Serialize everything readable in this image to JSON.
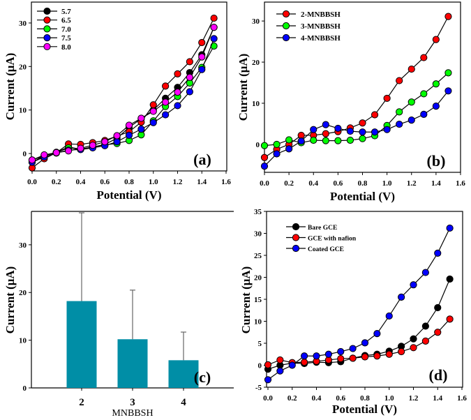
{
  "chart_data": [
    {
      "type": "line",
      "panel_label": "(a)",
      "xlabel": "Potential (V)",
      "ylabel": "Current (μA)",
      "xlim": [
        0,
        1.6
      ],
      "ylim": [
        -4,
        34.8
      ],
      "xticks": [
        "0.0",
        "0.2",
        "0.4",
        "0.6",
        "0.8",
        "1.0",
        "1.2",
        "1.4",
        "1.6"
      ],
      "yticks": [
        0,
        10,
        20,
        30
      ],
      "legend_position": "top-left",
      "x": [
        0,
        0.1,
        0.2,
        0.3,
        0.4,
        0.5,
        0.6,
        0.7,
        0.8,
        0.9,
        1.0,
        1.1,
        1.2,
        1.3,
        1.4,
        1.5
      ],
      "series": [
        {
          "name": "5.7",
          "color": "#000000",
          "values": [
            -1.5,
            -0.5,
            0.3,
            1.5,
            1.0,
            1.5,
            2.1,
            3.5,
            6.0,
            8.0,
            10.0,
            12.7,
            15.2,
            18.6,
            22.7,
            29.0
          ]
        },
        {
          "name": "6.5",
          "color": "#ff0000",
          "values": [
            -3.3,
            -1.2,
            0.2,
            2.2,
            2.1,
            2.5,
            3.0,
            4.0,
            5.0,
            7.2,
            11.2,
            15.5,
            18.3,
            21.1,
            25.5,
            31.1
          ]
        },
        {
          "name": "7.0",
          "color": "#00ff00",
          "values": [
            -2.0,
            -0.5,
            0.2,
            1.3,
            1.0,
            1.5,
            2.0,
            2.3,
            3.0,
            4.3,
            7.5,
            10.8,
            13.1,
            16.2,
            19.8,
            24.7
          ]
        },
        {
          "name": "7.5",
          "color": "#0000ff",
          "values": [
            -2.0,
            -0.8,
            0.1,
            0.8,
            0.9,
            1.3,
            1.8,
            2.7,
            4.2,
            5.6,
            7.1,
            8.9,
            11.0,
            14.2,
            19.3,
            26.4
          ]
        },
        {
          "name": "8.0",
          "color": "#ff00ff",
          "values": [
            -1.5,
            -0.3,
            0.2,
            0.6,
            1.2,
            1.9,
            2.7,
            4.1,
            6.5,
            8.1,
            9.7,
            11.8,
            14.1,
            17.5,
            22.2,
            29.0
          ]
        }
      ]
    },
    {
      "type": "line",
      "panel_label": "(b)",
      "xlabel": "Potential (V)",
      "ylabel": "Current (μA)",
      "xlim": [
        0,
        1.6
      ],
      "ylim": [
        -6.8,
        34.6
      ],
      "xticks": [
        "0.0",
        "0.2",
        "0.4",
        "0.6",
        "0.8",
        "1.0",
        "1.2",
        "1.4",
        "1.6"
      ],
      "yticks": [
        0,
        10,
        20,
        30
      ],
      "legend_position": "top-left",
      "x": [
        0,
        0.1,
        0.2,
        0.3,
        0.4,
        0.5,
        0.6,
        0.7,
        0.8,
        0.9,
        1.0,
        1.1,
        1.2,
        1.3,
        1.4,
        1.5
      ],
      "series": [
        {
          "name": "2-MNBBSH",
          "color": "#ff0000",
          "values": [
            -3.2,
            -1.2,
            0.0,
            2.2,
            2.2,
            2.6,
            3.1,
            4.0,
            5.2,
            7.2,
            11.2,
            15.5,
            18.3,
            21.1,
            25.5,
            31.1
          ]
        },
        {
          "name": "3-MNBBSH",
          "color": "#00ff00",
          "values": [
            -0.3,
            0.0,
            1.1,
            0.4,
            1.0,
            0.9,
            0.9,
            1.0,
            1.4,
            2.1,
            4.6,
            7.9,
            10.3,
            12.3,
            14.7,
            17.4
          ]
        },
        {
          "name": "4-MNBBSH",
          "color": "#0000ff",
          "values": [
            -5.3,
            -2.3,
            -1.1,
            0.8,
            3.6,
            4.8,
            3.9,
            3.2,
            3.0,
            3.0,
            3.6,
            4.9,
            5.9,
            7.3,
            9.3,
            13.0
          ]
        }
      ]
    },
    {
      "type": "bar",
      "panel_label": "(c)",
      "xlabel": "MNBBSH",
      "ylabel": "Current (μA)",
      "ylim": [
        0,
        37
      ],
      "yticks": [
        0,
        10,
        20,
        30
      ],
      "categories": [
        "2",
        "3",
        "4"
      ],
      "values": [
        18.2,
        10.2,
        5.8
      ],
      "error_upper": [
        36.7,
        20.5,
        11.7
      ],
      "color": "#008ea6"
    },
    {
      "type": "line",
      "panel_label": "(d)",
      "xlabel": "Potential (V)",
      "ylabel": "Current (μA)",
      "xlim": [
        0,
        1.6
      ],
      "ylim": [
        -5,
        35
      ],
      "xticks": [
        "0.0",
        "0.2",
        "0.4",
        "0.6",
        "0.8",
        "1.0",
        "1.2",
        "1.4",
        "1.6"
      ],
      "yticks": [
        -5,
        0,
        5,
        10,
        15,
        20,
        25,
        30,
        35
      ],
      "legend_position": "top-left",
      "x": [
        0,
        0.1,
        0.2,
        0.3,
        0.4,
        0.5,
        0.6,
        0.7,
        0.8,
        0.9,
        1.0,
        1.1,
        1.2,
        1.3,
        1.4,
        1.5
      ],
      "series": [
        {
          "name": "Bare GCE",
          "color": "#000000",
          "values": [
            -0.9,
            0.0,
            0.5,
            0.4,
            0.7,
            0.6,
            0.8,
            1.6,
            2.2,
            2.5,
            3.2,
            4.3,
            6.0,
            8.9,
            13.1,
            19.6
          ]
        },
        {
          "name": "GCE with nafion",
          "color": "#ff0000",
          "values": [
            0.1,
            1.2,
            0.6,
            0.7,
            0.9,
            1.2,
            1.5,
            1.6,
            1.9,
            2.1,
            2.5,
            3.1,
            4.0,
            5.5,
            7.5,
            10.5
          ]
        },
        {
          "name": "Coated GCE",
          "color": "#0000ff",
          "values": [
            -3.3,
            -1.3,
            0.0,
            2.1,
            2.1,
            2.5,
            3.1,
            3.8,
            5.1,
            7.2,
            11.2,
            15.5,
            18.3,
            21.1,
            25.5,
            31.2
          ]
        }
      ]
    }
  ]
}
